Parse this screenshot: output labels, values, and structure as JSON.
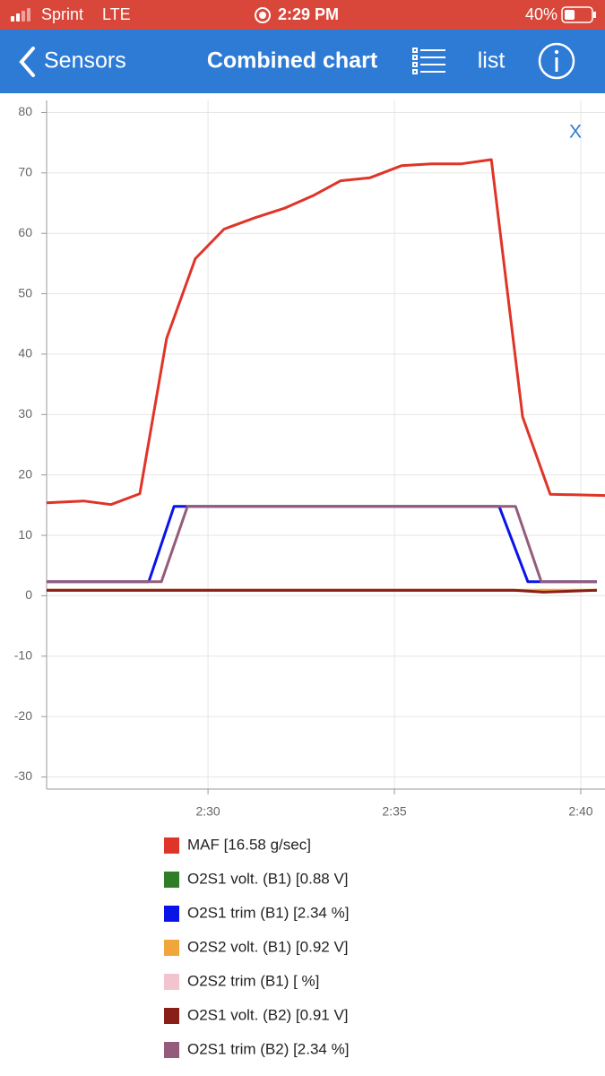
{
  "status_bar": {
    "carrier": "Sprint",
    "network": "LTE",
    "time": "2:29 PM",
    "battery": "40%"
  },
  "nav": {
    "back": "Sensors",
    "title": "Combined chart",
    "list": "list"
  },
  "close": "X",
  "chart_data": {
    "type": "line",
    "xlim": [
      25.67,
      40.65
    ],
    "xticks": [
      {
        "value": 30,
        "label": "2:30"
      },
      {
        "value": 35,
        "label": "2:35"
      },
      {
        "value": 40,
        "label": "2:40"
      }
    ],
    "ylim": [
      -32,
      82
    ],
    "yticks": [
      -30,
      -20,
      -10,
      0,
      10,
      20,
      30,
      40,
      50,
      60,
      70,
      80
    ],
    "grid": true,
    "series": [
      {
        "name": "MAF [16.58 g/sec]",
        "color": "#e03428",
        "x": [
          25.67,
          26.66,
          27.4,
          28.17,
          28.89,
          29.66,
          30.43,
          31.27,
          32.07,
          32.81,
          33.56,
          34.35,
          35.19,
          35.99,
          36.8,
          37.6,
          38.44,
          39.18,
          40.65
        ],
        "values": [
          15.4,
          15.7,
          15.1,
          16.9,
          42.6,
          55.8,
          60.7,
          62.6,
          64.2,
          66.2,
          68.7,
          69.2,
          71.2,
          71.5,
          71.5,
          72.2,
          29.6,
          16.8,
          16.6
        ]
      },
      {
        "name": "O2S1 volt. (B1) [0.88 V]",
        "color": "#2f7d26",
        "x": [
          25.67,
          40.43
        ],
        "values": [
          0.88,
          0.88
        ]
      },
      {
        "name": "O2S1 trim (B1) [2.34 %]",
        "color": "#0a14e6",
        "x": [
          25.67,
          28.41,
          29.09,
          37.81,
          38.58,
          40.43
        ],
        "values": [
          2.34,
          2.34,
          14.8,
          14.8,
          2.34,
          2.34
        ]
      },
      {
        "name": "O2S2 volt. (B1) [0.92 V]",
        "color": "#f0a63a",
        "x": [
          25.67,
          40.43
        ],
        "values": [
          0.92,
          0.92
        ]
      },
      {
        "name": "O2S2 trim (B1) [ %]",
        "color": "#f2c4cf",
        "x": [],
        "values": []
      },
      {
        "name": "O2S1 volt. (B2) [0.91 V]",
        "color": "#8a1f1a",
        "x": [
          25.67,
          38.2,
          39.0,
          40.43
        ],
        "values": [
          0.91,
          0.91,
          0.6,
          0.91
        ]
      },
      {
        "name": "O2S1 trim (B2) [2.34 %]",
        "color": "#945c7a",
        "x": [
          25.67,
          28.75,
          29.45,
          38.25,
          38.94,
          40.43
        ],
        "values": [
          2.34,
          2.34,
          14.8,
          14.8,
          2.34,
          2.34
        ]
      }
    ]
  }
}
